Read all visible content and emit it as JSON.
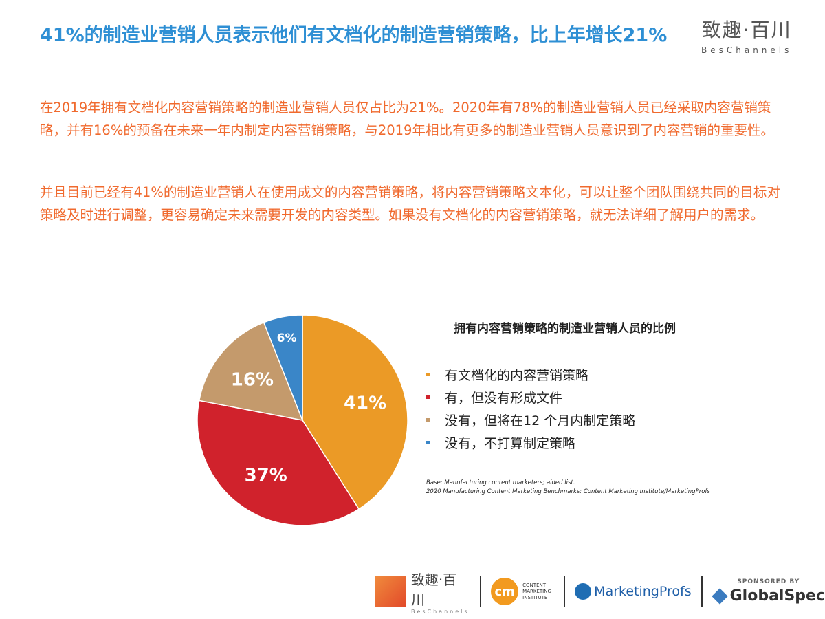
{
  "header": {
    "title": "41%的制造业营销人员表示他们有文档化的制造营销策略，比上年增长21%",
    "logo_cn": "致趣·百川",
    "logo_en": "BesChannels"
  },
  "body": {
    "p1": "在2019年拥有文档化内容营销策略的制造业营销人员仅占比为21%。2020年有78%的制造业营销人员已经采取内容营销策略，并有16%的预备在未来一年内制定内容营销策略，与2019年相比有更多的制造业营销人员意识到了内容营销的重要性。",
    "p2": "并且目前已经有41%的制造业营销人在使用成文的内容营销策略，将内容营销策略文本化，可以让整个团队围绕共同的目标对策略及时进行调整，更容易确定未来需要开发的内容类型。如果没有文档化的内容营销策略，就无法详细了解用户的需求。"
  },
  "chart_data": {
    "type": "pie",
    "title": "拥有内容营销策略的制造业营销人员的比例",
    "categories": [
      "有文档化的内容营销策略",
      "有，但没有形成文件",
      "没有，但将在12 个月内制定策略",
      "没有，不打算制定策略"
    ],
    "values": [
      41,
      37,
      16,
      6
    ],
    "labels": [
      "41%",
      "37%",
      "16%",
      "6%"
    ],
    "colors": [
      "#eb9a26",
      "#d0222c",
      "#c49a6c",
      "#3a86c8"
    ],
    "legend_position": "right",
    "notes": [
      "Base: Manufacturing content marketers; aided list.",
      "2020 Manufacturing Content Marketing Benchmarks: Content Marketing Institute/MarketingProfs"
    ]
  },
  "footer": {
    "logo1_cn": "致趣·百川",
    "logo1_en": "BesChannels",
    "cmi": "CONTENT MARKETING INSTITUTE",
    "cm": "cm",
    "mp": "MarketingProfs",
    "sponsored": "SPONSORED BY",
    "gs": "GlobalSpec"
  }
}
